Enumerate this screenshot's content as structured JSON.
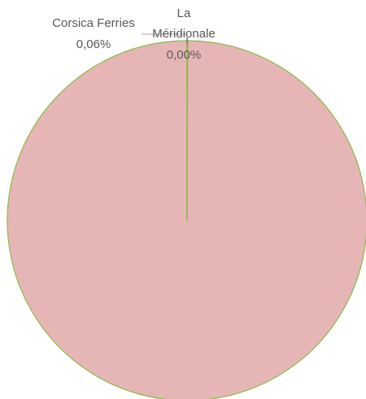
{
  "chart_data": {
    "type": "pie",
    "title": "",
    "slices": [
      {
        "label": "Corsica Ferries",
        "value": 0.06,
        "display": "0,06%",
        "color": "#7F7F7F"
      },
      {
        "label": "La Méridionale",
        "value": 0.0,
        "display": "0,00%",
        "color": "#8064A2"
      },
      {
        "label": "",
        "value": 99.94,
        "display": "",
        "color": "#E6B6B6"
      }
    ],
    "slice_border_color": "#8DB84A",
    "leader_line_color": "#A6A6A6"
  }
}
